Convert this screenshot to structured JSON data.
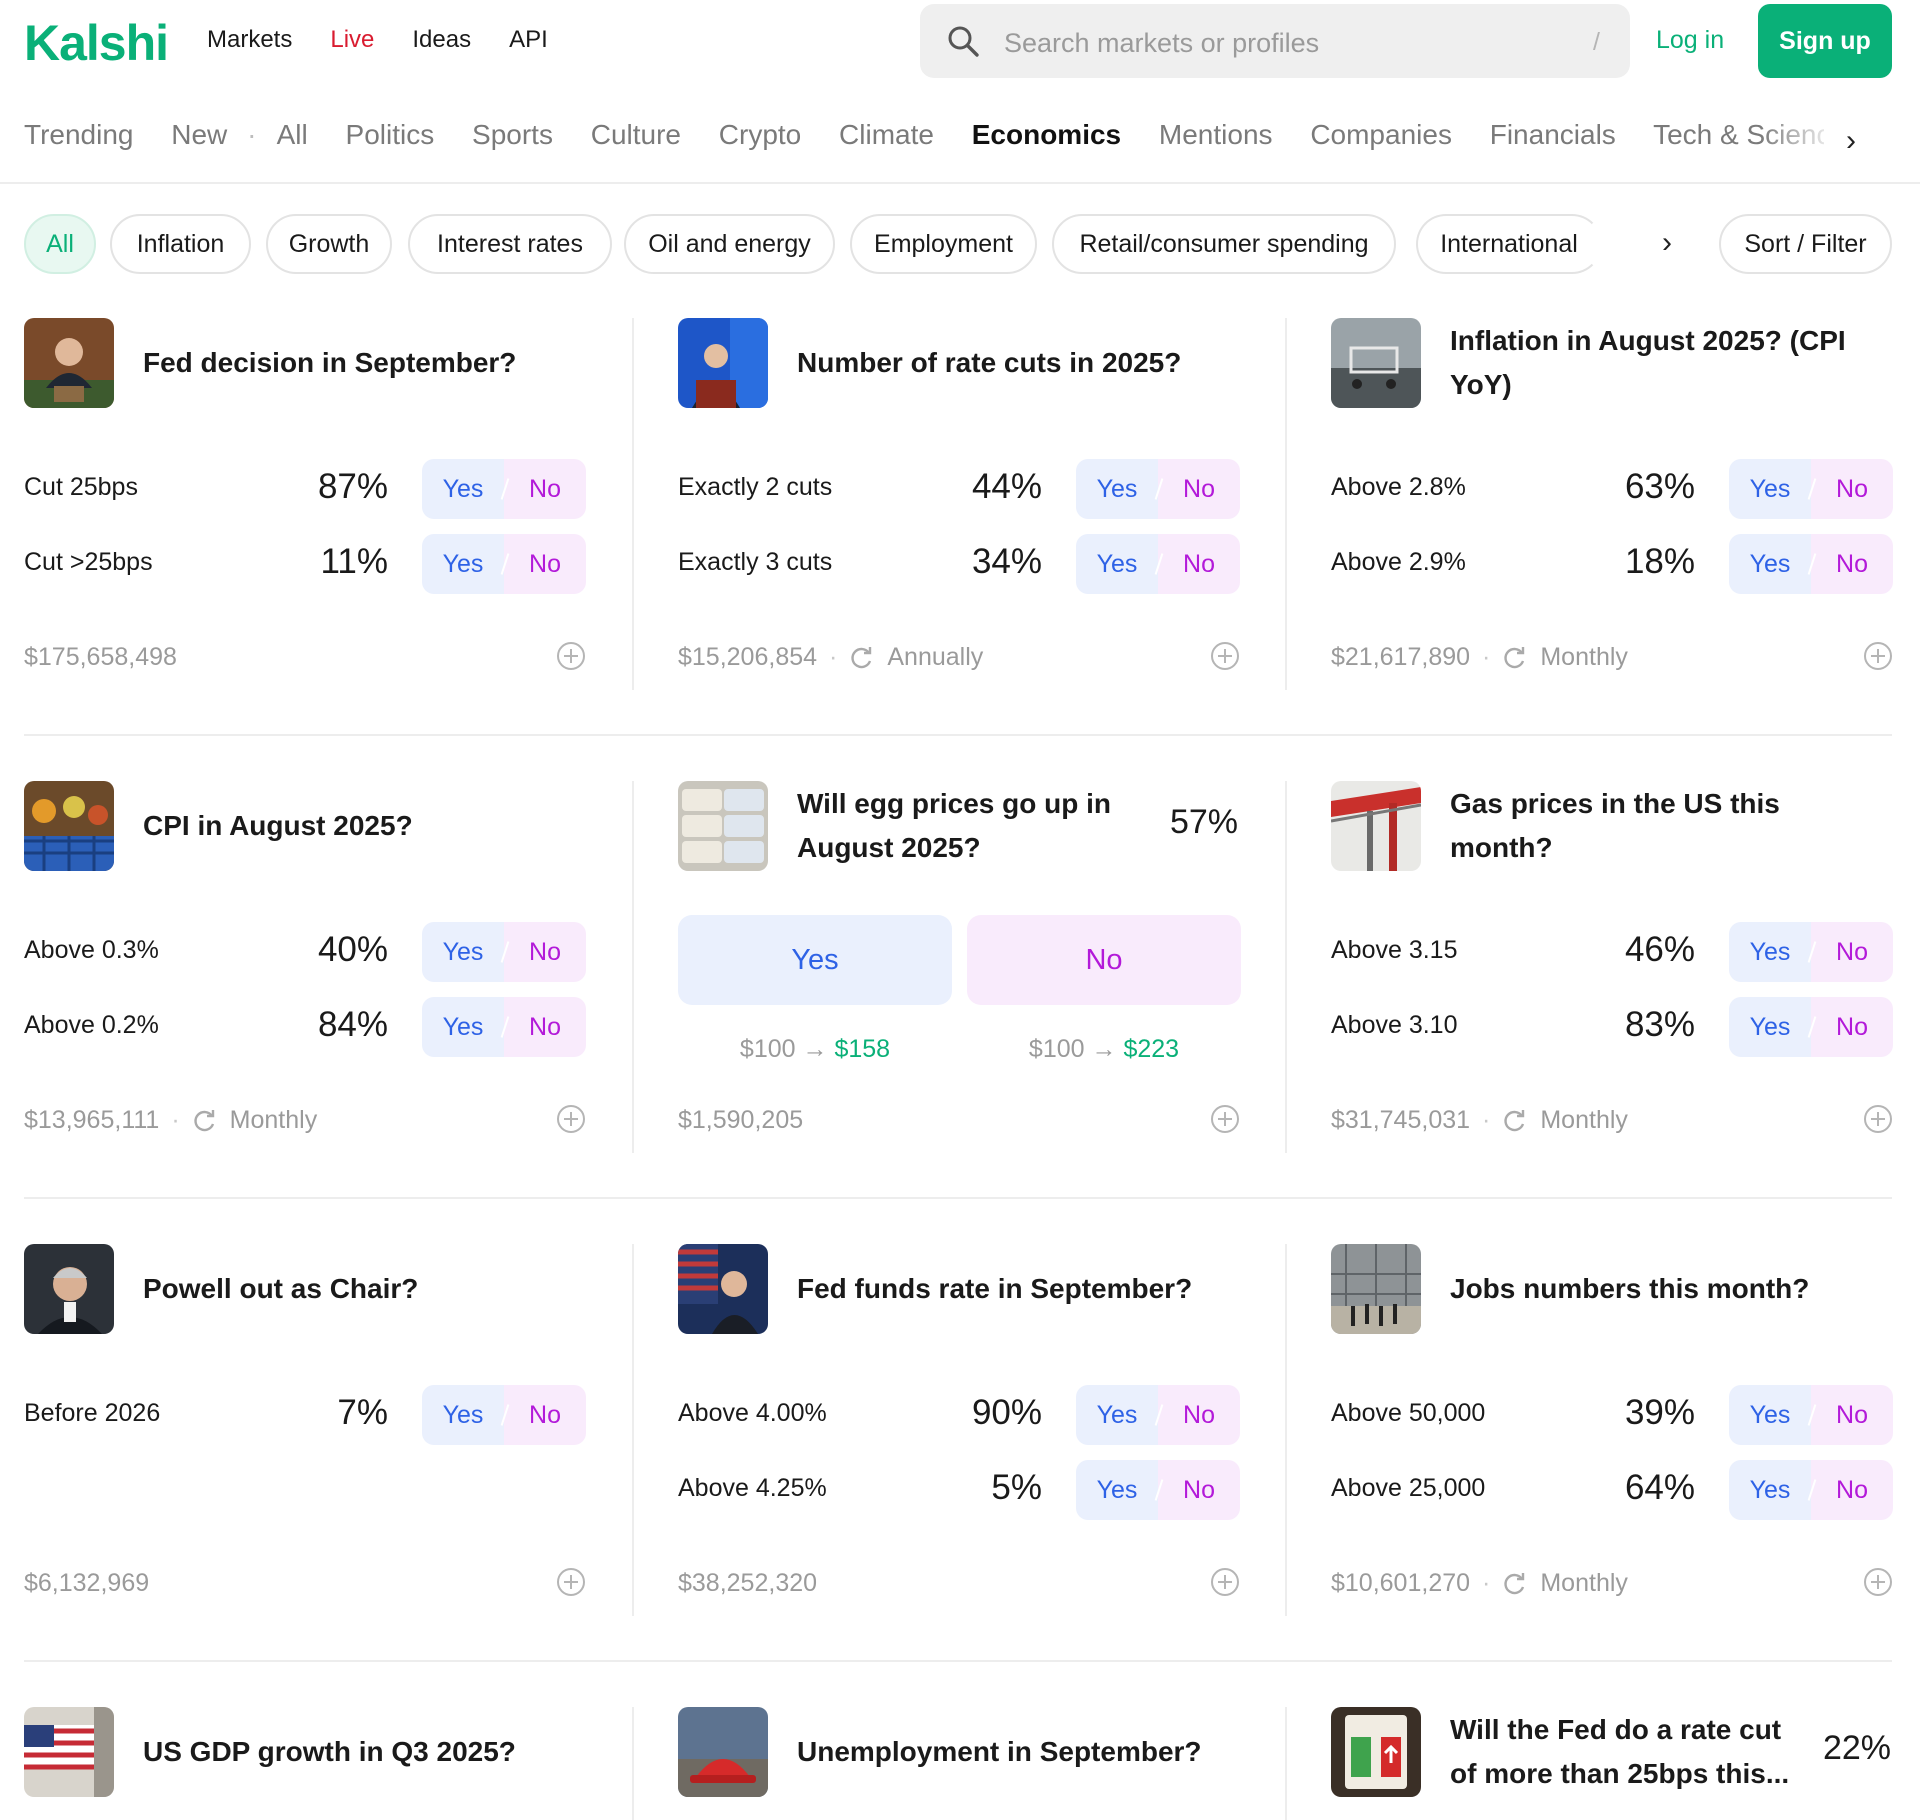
{
  "brand": {
    "logo_text": "Kalshi",
    "accent": "#0ab078"
  },
  "nav": {
    "markets": "Markets",
    "live": "Live",
    "ideas": "Ideas",
    "api": "API"
  },
  "search": {
    "placeholder": "Search markets or profiles",
    "shortcut": "/"
  },
  "auth": {
    "login": "Log in",
    "signup": "Sign up"
  },
  "categories": {
    "items": [
      "Trending",
      "New",
      "All",
      "Politics",
      "Sports",
      "Culture",
      "Crypto",
      "Climate",
      "Economics",
      "Mentions",
      "Companies",
      "Financials",
      "Tech & Science"
    ],
    "active": "Economics"
  },
  "filters": {
    "chips": [
      "All",
      "Inflation",
      "Growth",
      "Interest rates",
      "Oil and energy",
      "Employment",
      "Retail/consumer spending",
      "International"
    ],
    "active": "All",
    "sort_label": "Sort / Filter"
  },
  "option_buttons": {
    "yes": "Yes",
    "no": "No"
  },
  "markets": [
    {
      "title": "Fed decision in September?",
      "thumb": "fed-chair-podium-photo",
      "options": [
        {
          "label": "Cut 25bps",
          "pct": "87%"
        },
        {
          "label": "Cut >25bps",
          "pct": "11%"
        }
      ],
      "volume": "$175,658,498",
      "frequency": ""
    },
    {
      "title": "Number of rate cuts in 2025?",
      "thumb": "fed-listens-event-photo",
      "options": [
        {
          "label": "Exactly 2 cuts",
          "pct": "44%"
        },
        {
          "label": "Exactly 3 cuts",
          "pct": "34%"
        }
      ],
      "volume": "$15,206,854",
      "frequency": "Annually"
    },
    {
      "title": "Inflation in August 2025? (CPI YoY)",
      "thumb": "shopping-cart-photo",
      "options": [
        {
          "label": "Above 2.8%",
          "pct": "63%"
        },
        {
          "label": "Above 2.9%",
          "pct": "18%"
        }
      ],
      "volume": "$21,617,890",
      "frequency": "Monthly"
    },
    {
      "title": "CPI in August 2025?",
      "thumb": "produce-basket-photo",
      "options": [
        {
          "label": "Above 0.3%",
          "pct": "40%"
        },
        {
          "label": "Above 0.2%",
          "pct": "84%"
        }
      ],
      "volume": "$13,965,111",
      "frequency": "Monthly"
    },
    {
      "title": "Will egg prices go up in August 2025?",
      "thumb": "egg-cartons-photo",
      "chance": "57%",
      "payout_yes": {
        "stake": "$100",
        "win": "$158"
      },
      "payout_no": {
        "stake": "$100",
        "win": "$223"
      },
      "volume": "$1,590,205",
      "frequency": ""
    },
    {
      "title": "Gas prices in the US this month?",
      "thumb": "gas-station-photo",
      "options": [
        {
          "label": "Above 3.15",
          "pct": "46%"
        },
        {
          "label": "Above 3.10",
          "pct": "83%"
        }
      ],
      "volume": "$31,745,031",
      "frequency": "Monthly"
    },
    {
      "title": "Powell out as Chair?",
      "thumb": "powell-portrait-photo",
      "options": [
        {
          "label": "Before 2026",
          "pct": "7%"
        }
      ],
      "volume": "$6,132,969",
      "frequency": ""
    },
    {
      "title": "Fed funds rate in September?",
      "thumb": "powell-flag-photo",
      "options": [
        {
          "label": "Above 4.00%",
          "pct": "90%"
        },
        {
          "label": "Above 4.25%",
          "pct": "5%"
        }
      ],
      "volume": "$38,252,320",
      "frequency": ""
    },
    {
      "title": "Jobs numbers this month?",
      "thumb": "construction-workers-photo",
      "options": [
        {
          "label": "Above 50,000",
          "pct": "39%"
        },
        {
          "label": "Above 25,000",
          "pct": "64%"
        }
      ],
      "volume": "$10,601,270",
      "frequency": "Monthly"
    },
    {
      "title": "US GDP growth in Q3 2025?",
      "thumb": "us-flag-building-photo"
    },
    {
      "title": "Unemployment in September?",
      "thumb": "hard-hat-photo"
    },
    {
      "title": "Will the Fed do a rate cut of more than 25bps this...",
      "thumb": "bank-rate-sign-photo",
      "chance": "22%"
    }
  ],
  "colors": {
    "yes": "#2e62e6",
    "yes_bg": "#eaf0fd",
    "no": "#b31ad9",
    "no_bg": "#f9ebfc",
    "live": "#d91c30"
  }
}
